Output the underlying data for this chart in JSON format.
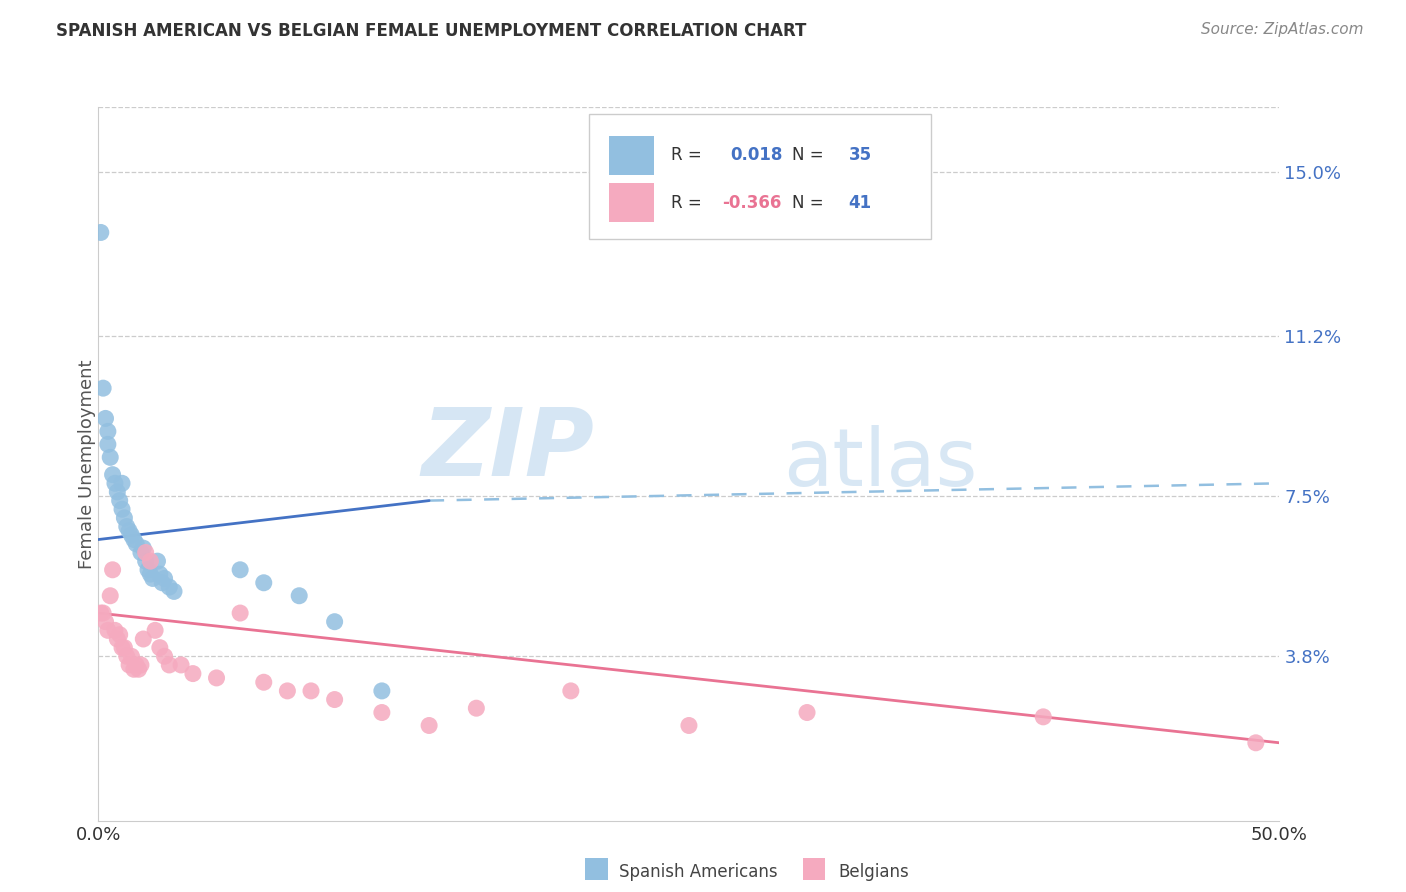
{
  "title": "SPANISH AMERICAN VS BELGIAN FEMALE UNEMPLOYMENT CORRELATION CHART",
  "source": "Source: ZipAtlas.com",
  "ylabel": "Female Unemployment",
  "xlim": [
    0.0,
    0.5
  ],
  "ylim": [
    0.0,
    0.165
  ],
  "ytick_labels_right": [
    "15.0%",
    "11.2%",
    "7.5%",
    "3.8%"
  ],
  "ytick_vals_right": [
    0.15,
    0.112,
    0.075,
    0.038
  ],
  "watermark_zip": "ZIP",
  "watermark_atlas": "atlas",
  "blue_color": "#92BFE0",
  "pink_color": "#F5AABF",
  "blue_line_color": "#4472C4",
  "pink_line_color": "#E97393",
  "dashed_line_color": "#92BFE0",
  "grid_color": "#CCCCCC",
  "blue_label_color": "#4472C4",
  "spanish_americans_x": [
    0.001,
    0.002,
    0.003,
    0.004,
    0.004,
    0.005,
    0.006,
    0.007,
    0.008,
    0.009,
    0.01,
    0.01,
    0.011,
    0.012,
    0.013,
    0.014,
    0.015,
    0.016,
    0.018,
    0.019,
    0.02,
    0.021,
    0.022,
    0.023,
    0.025,
    0.026,
    0.027,
    0.028,
    0.03,
    0.032,
    0.06,
    0.07,
    0.085,
    0.1,
    0.12
  ],
  "spanish_americans_y": [
    0.136,
    0.1,
    0.093,
    0.09,
    0.087,
    0.084,
    0.08,
    0.078,
    0.076,
    0.074,
    0.072,
    0.078,
    0.07,
    0.068,
    0.067,
    0.066,
    0.065,
    0.064,
    0.062,
    0.063,
    0.06,
    0.058,
    0.057,
    0.056,
    0.06,
    0.057,
    0.055,
    0.056,
    0.054,
    0.053,
    0.058,
    0.055,
    0.052,
    0.046,
    0.03
  ],
  "belgians_x": [
    0.001,
    0.002,
    0.003,
    0.004,
    0.005,
    0.006,
    0.007,
    0.008,
    0.009,
    0.01,
    0.011,
    0.012,
    0.013,
    0.014,
    0.015,
    0.016,
    0.017,
    0.018,
    0.019,
    0.02,
    0.022,
    0.024,
    0.026,
    0.028,
    0.03,
    0.035,
    0.04,
    0.05,
    0.06,
    0.07,
    0.08,
    0.09,
    0.1,
    0.12,
    0.14,
    0.16,
    0.2,
    0.25,
    0.3,
    0.4,
    0.49
  ],
  "belgians_y": [
    0.048,
    0.048,
    0.046,
    0.044,
    0.052,
    0.058,
    0.044,
    0.042,
    0.043,
    0.04,
    0.04,
    0.038,
    0.036,
    0.038,
    0.035,
    0.036,
    0.035,
    0.036,
    0.042,
    0.062,
    0.06,
    0.044,
    0.04,
    0.038,
    0.036,
    0.036,
    0.034,
    0.033,
    0.048,
    0.032,
    0.03,
    0.03,
    0.028,
    0.025,
    0.022,
    0.026,
    0.03,
    0.022,
    0.025,
    0.024,
    0.018
  ],
  "sa_line_x0": 0.0,
  "sa_line_y0": 0.065,
  "sa_line_x1": 0.14,
  "sa_line_y1": 0.074,
  "dash_line_x0": 0.14,
  "dash_line_y0": 0.074,
  "dash_line_x1": 0.5,
  "dash_line_y1": 0.078,
  "be_line_x0": 0.0,
  "be_line_y0": 0.048,
  "be_line_x1": 0.5,
  "be_line_y1": 0.018
}
